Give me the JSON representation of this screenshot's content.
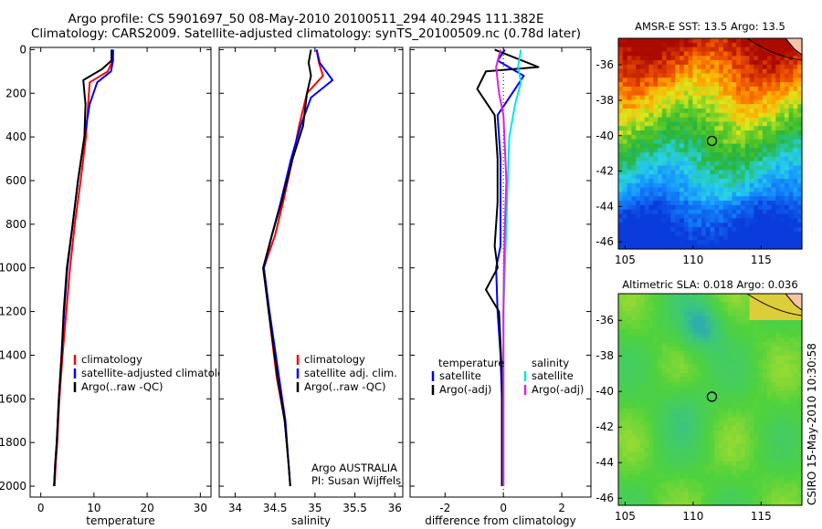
{
  "header": {
    "title_line1": "Argo profile: CS 5901697_50 08-May-2010 20100511_294 40.294S 111.382E",
    "title_line2": "Climatology: CARS2009. Satellite-adjusted climatology: synTS_20100509.nc (0.78d later)"
  },
  "side_label": "CSIRO 15-May-2010 10:30:58",
  "colors": {
    "climatology": "#ff0000",
    "satellite": "#0000ff",
    "argo": "#000000",
    "salinity_satellite": "#00e5ee",
    "salinity_argo": "#e020e0",
    "ssh_green": "#3cc83c"
  },
  "chart_data": [
    {
      "type": "line",
      "xlabel": "temperature",
      "ylabel": "",
      "xlim": [
        -2,
        32
      ],
      "ylim": [
        2050,
        -10
      ],
      "xticks": [
        0,
        10,
        20,
        30
      ],
      "yticks": [
        0,
        200,
        400,
        600,
        800,
        1000,
        1200,
        1400,
        1600,
        1800,
        2000
      ],
      "legend": {
        "entries": [
          "climatology",
          "satellite-adjusted climatology",
          "Argo(..raw -QC)"
        ]
      },
      "series": [
        {
          "name": "climatology",
          "color": "#ff0000",
          "x": [
            13.6,
            13.5,
            12.6,
            9.2,
            8.9,
            8.5,
            7.5,
            6.4,
            5.5,
            4.8,
            4.1,
            3.5,
            3.1,
            2.8,
            2.6
          ],
          "y": [
            0,
            50,
            100,
            150,
            250,
            400,
            600,
            800,
            1000,
            1200,
            1400,
            1600,
            1800,
            1900,
            2000
          ]
        },
        {
          "name": "satellite-adjusted climatology",
          "color": "#0000ff",
          "x": [
            13.6,
            13.6,
            13.2,
            10.6,
            9.2,
            8.2,
            7.0,
            6.0,
            5.0,
            4.4,
            3.9,
            3.4,
            3.0,
            2.7,
            2.5
          ],
          "y": [
            0,
            50,
            100,
            150,
            250,
            400,
            600,
            800,
            1000,
            1200,
            1400,
            1600,
            1800,
            1900,
            2000
          ]
        },
        {
          "name": "Argo(..raw -QC)",
          "color": "#000000",
          "x": [
            13.3,
            13.3,
            11.5,
            8.0,
            8.4,
            8.2,
            7.0,
            6.0,
            4.9,
            4.3,
            3.9,
            3.4,
            3.0,
            2.7,
            2.5
          ],
          "y": [
            0,
            50,
            90,
            140,
            250,
            400,
            600,
            800,
            1000,
            1200,
            1400,
            1600,
            1800,
            1900,
            2000
          ]
        }
      ]
    },
    {
      "type": "line",
      "xlabel": "salinity",
      "ylabel": "",
      "xlim": [
        33.8,
        36.1
      ],
      "ylim": [
        2050,
        -10
      ],
      "xticks": [
        34,
        34.5,
        35,
        35.5,
        36
      ],
      "yticks": [],
      "legend": {
        "entries": [
          "climatology",
          "satellite adj. clim.",
          "Argo(..raw -QC)"
        ]
      },
      "annotation": [
        "Argo AUSTRALIA",
        "PI: Susan Wijffels"
      ],
      "series": [
        {
          "name": "climatology",
          "color": "#ff0000",
          "x": [
            35.02,
            35.05,
            35.1,
            34.9,
            34.8,
            34.72,
            34.6,
            34.5,
            34.36,
            34.42,
            34.52,
            34.62,
            34.67,
            34.69
          ],
          "y": [
            0,
            60,
            120,
            200,
            350,
            500,
            700,
            850,
            1000,
            1200,
            1500,
            1700,
            1900,
            2000
          ]
        },
        {
          "name": "satellite adj. clim.",
          "color": "#0000ff",
          "x": [
            35.02,
            35.06,
            35.22,
            34.95,
            34.82,
            34.7,
            34.57,
            34.46,
            34.36,
            34.43,
            34.55,
            34.63,
            34.67,
            34.69
          ],
          "y": [
            0,
            60,
            140,
            220,
            350,
            500,
            700,
            850,
            1000,
            1200,
            1500,
            1700,
            1900,
            2000
          ]
        },
        {
          "name": "Argo(..raw -QC)",
          "color": "#000000",
          "x": [
            34.95,
            34.92,
            34.95,
            34.9,
            34.85,
            34.72,
            34.58,
            34.46,
            34.35,
            34.42,
            34.53,
            34.62,
            34.67,
            34.69
          ],
          "y": [
            0,
            60,
            120,
            200,
            350,
            500,
            700,
            850,
            1000,
            1200,
            1500,
            1700,
            1900,
            2000
          ]
        }
      ]
    },
    {
      "type": "line",
      "xlabel": "difference from climatology",
      "ylabel": "",
      "xlim": [
        -3.2,
        3.0
      ],
      "ylim": [
        2050,
        -10
      ],
      "xticks": [
        -2,
        0,
        2
      ],
      "yticks": [],
      "legend": {
        "left_title": "temperature",
        "left_entries": [
          "satellite",
          "Argo(-adj)"
        ],
        "right_title": "salinity",
        "right_entries": [
          "satellite",
          "Argo(-adj)"
        ]
      },
      "series": [
        {
          "name": "temperature satellite",
          "color": "#0000ff",
          "x": [
            0.05,
            -0.2,
            0.7,
            0.3,
            -0.2,
            -0.1,
            -0.1,
            -0.1,
            -0.25,
            -0.2,
            -0.1,
            -0.05,
            -0.05,
            -0.05
          ],
          "y": [
            0,
            50,
            120,
            200,
            300,
            500,
            700,
            900,
            1000,
            1200,
            1400,
            1600,
            1800,
            2000
          ]
        },
        {
          "name": "temperature Argo(-adj)",
          "color": "#000000",
          "x": [
            -0.3,
            1.2,
            -0.6,
            -0.9,
            -0.3,
            -0.2,
            -0.2,
            -0.3,
            -0.2,
            -0.6,
            -0.15,
            -0.05,
            -0.05,
            -0.05
          ],
          "y": [
            0,
            80,
            100,
            180,
            300,
            500,
            700,
            900,
            1000,
            1100,
            1200,
            1500,
            1800,
            2000
          ]
        },
        {
          "name": "salinity satellite",
          "color": "#00e5ee",
          "x": [
            0.6,
            0.5,
            0.6,
            0.4,
            0.2,
            0.15,
            0.1,
            0.05,
            0.0,
            0.0,
            0.0,
            0.0,
            0.0
          ],
          "y": [
            0,
            80,
            150,
            250,
            400,
            600,
            800,
            1000,
            1200,
            1400,
            1600,
            1800,
            2000
          ]
        },
        {
          "name": "salinity Argo(-adj)",
          "color": "#e020e0",
          "x": [
            -0.1,
            -0.25,
            -0.15,
            0.0,
            0.05,
            0.1,
            0.05,
            0.02,
            0.0,
            0.0,
            0.0,
            0.0
          ],
          "y": [
            0,
            80,
            200,
            300,
            450,
            600,
            800,
            1000,
            1200,
            1400,
            1700,
            2000
          ]
        }
      ]
    },
    {
      "type": "heatmap",
      "title": "AMSR-E SST: 13.5 Argo: 13.5",
      "xticks": [
        105,
        110,
        115
      ],
      "yticks": [
        -36,
        -38,
        -40,
        -42,
        -44,
        -46
      ],
      "xlim": [
        104.5,
        118
      ],
      "ylim": [
        -46.4,
        -34.5
      ],
      "marker": {
        "lon": 111.382,
        "lat": -40.294
      }
    },
    {
      "type": "heatmap",
      "title": "Altimetric SLA: 0.018 Argo: 0.036",
      "xticks": [
        105,
        110,
        115
      ],
      "yticks": [
        -36,
        -38,
        -40,
        -42,
        -44,
        -46
      ],
      "xlim": [
        104.5,
        118
      ],
      "ylim": [
        -46.4,
        -34.5
      ],
      "marker": {
        "lon": 111.382,
        "lat": -40.294
      }
    }
  ]
}
